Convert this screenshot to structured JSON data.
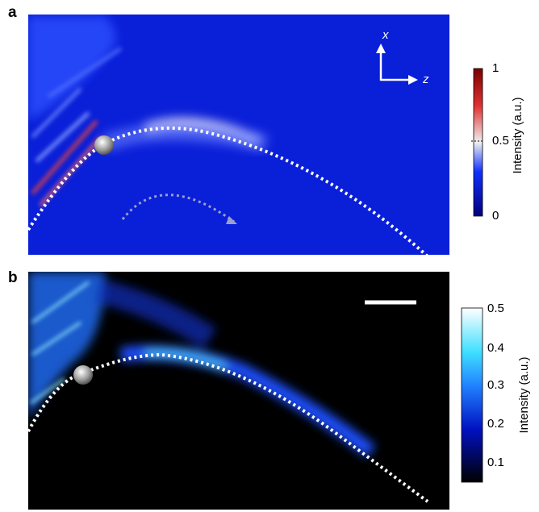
{
  "panels": [
    {
      "label": "a",
      "axis_x": "x",
      "axis_z": "z",
      "colorbar_label": "Intensity (a.u.)",
      "colorbar_ticks": [
        "1",
        "0.5",
        "0"
      ]
    },
    {
      "label": "b",
      "colorbar_label": "Intensity (a.u.)",
      "colorbar_ticks": [
        "0.5",
        "0.4",
        "0.3",
        "0.2",
        "0.1"
      ]
    }
  ]
}
